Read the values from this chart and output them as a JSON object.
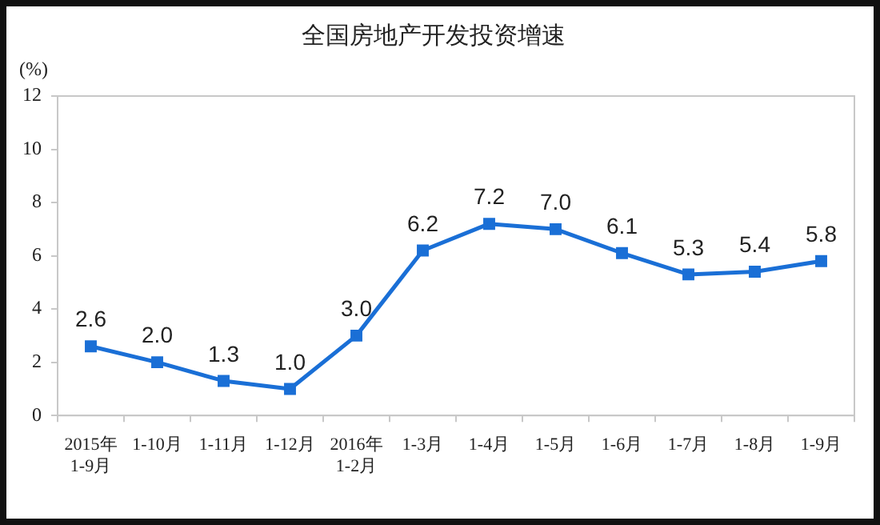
{
  "chart_data": {
    "type": "line",
    "title": "全国房地产开发投资增速",
    "ylabel": "(%)",
    "categories": [
      "2015年\n1-9月",
      "1-10月",
      "1-11月",
      "1-12月",
      "2016年\n1-2月",
      "1-3月",
      "1-4月",
      "1-5月",
      "1-6月",
      "1-7月",
      "1-8月",
      "1-9月"
    ],
    "series": [
      {
        "color": "#1a6fd6",
        "values": [
          2.6,
          2.0,
          1.3,
          1.0,
          3.0,
          6.2,
          7.2,
          7.0,
          6.1,
          5.3,
          5.4,
          5.8
        ],
        "value_labels": [
          "2.6",
          "2.0",
          "1.3",
          "1.0",
          "3.0",
          "6.2",
          "7.2",
          "7.0",
          "6.1",
          "5.3",
          "5.4",
          "5.8"
        ]
      }
    ],
    "ylim": [
      0,
      12
    ],
    "yticks": [
      0,
      2,
      4,
      6,
      8,
      10,
      12
    ],
    "grid": false,
    "legend": false,
    "marker": "square",
    "line_style": "solid"
  }
}
